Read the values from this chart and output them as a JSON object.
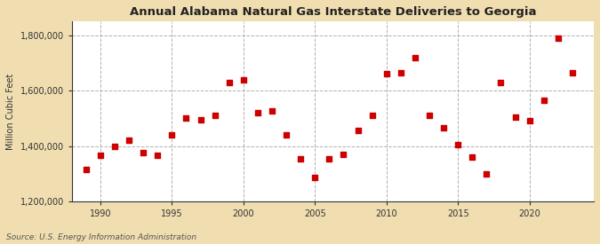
{
  "title": "Annual Alabama Natural Gas Interstate Deliveries to Georgia",
  "ylabel": "Million Cubic Feet",
  "source": "Source: U.S. Energy Information Administration",
  "background_color": "#f0deb0",
  "plot_background_color": "#ffffff",
  "marker_color": "#cc0000",
  "marker": "s",
  "marker_size": 16,
  "ylim": [
    1200000,
    1850000
  ],
  "xlim": [
    1988.0,
    2024.5
  ],
  "yticks": [
    1200000,
    1400000,
    1600000,
    1800000
  ],
  "xticks": [
    1990,
    1995,
    2000,
    2005,
    2010,
    2015,
    2020
  ],
  "grid_color": "#b0b0b0",
  "data": [
    [
      1989,
      1315000
    ],
    [
      1990,
      1365000
    ],
    [
      1991,
      1400000
    ],
    [
      1992,
      1420000
    ],
    [
      1993,
      1375000
    ],
    [
      1994,
      1365000
    ],
    [
      1995,
      1440000
    ],
    [
      1996,
      1500000
    ],
    [
      1997,
      1495000
    ],
    [
      1998,
      1510000
    ],
    [
      1999,
      1630000
    ],
    [
      2000,
      1640000
    ],
    [
      2001,
      1520000
    ],
    [
      2002,
      1525000
    ],
    [
      2003,
      1440000
    ],
    [
      2004,
      1355000
    ],
    [
      2005,
      1285000
    ],
    [
      2006,
      1355000
    ],
    [
      2007,
      1370000
    ],
    [
      2008,
      1455000
    ],
    [
      2009,
      1510000
    ],
    [
      2010,
      1660000
    ],
    [
      2011,
      1665000
    ],
    [
      2012,
      1720000
    ],
    [
      2013,
      1510000
    ],
    [
      2014,
      1465000
    ],
    [
      2015,
      1405000
    ],
    [
      2016,
      1360000
    ],
    [
      2017,
      1300000
    ],
    [
      2018,
      1630000
    ],
    [
      2019,
      1505000
    ],
    [
      2020,
      1490000
    ],
    [
      2021,
      1565000
    ],
    [
      2022,
      1790000
    ],
    [
      2023,
      1665000
    ]
  ]
}
